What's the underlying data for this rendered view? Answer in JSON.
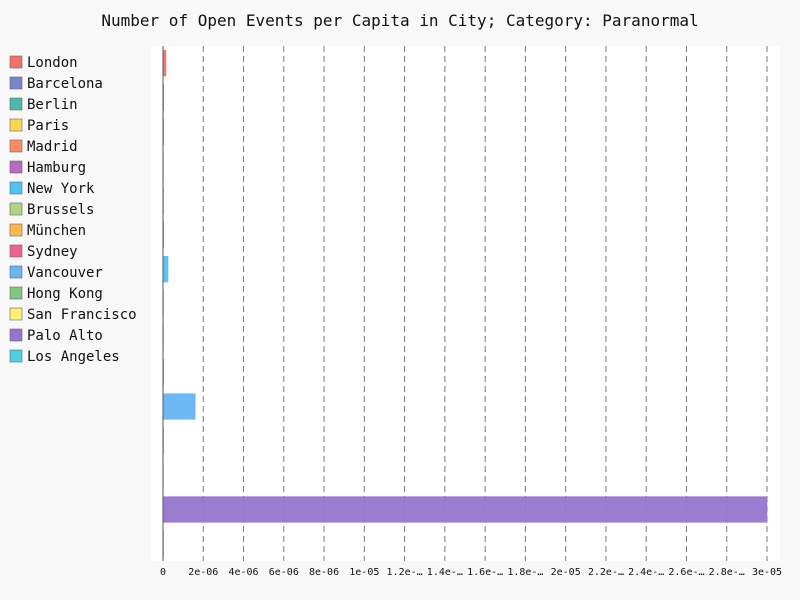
{
  "chart_data": {
    "type": "bar",
    "orientation": "horizontal",
    "title": "Number of Open Events per Capita in City; Category: Paranormal",
    "xlabel": "",
    "ylabel": "",
    "xlim": [
      0,
      3e-05
    ],
    "grid": "vertical-dashed",
    "legend_position": "left",
    "x_tick_labels": [
      "0",
      "2e-06",
      "4e-06",
      "6e-06",
      "8e-06",
      "1e-05",
      "1.2e-…",
      "1.4e-…",
      "1.6e-…",
      "1.8e-…",
      "2e-05",
      "2.2e-…",
      "2.4e-…",
      "2.6e-…",
      "2.8e-…",
      "3e-05"
    ],
    "x_tick_values": [
      0,
      2e-06,
      4e-06,
      6e-06,
      8e-06,
      1e-05,
      1.2e-05,
      1.4e-05,
      1.6e-05,
      1.8e-05,
      2e-05,
      2.2e-05,
      2.4e-05,
      2.6e-05,
      2.8e-05,
      3e-05
    ],
    "series": [
      {
        "name": "London",
        "value": 1.5e-07,
        "color": "#f0736a"
      },
      {
        "name": "Barcelona",
        "value": 0.0,
        "color": "#7986cb"
      },
      {
        "name": "Berlin",
        "value": 0.0,
        "color": "#4db6ac"
      },
      {
        "name": "Paris",
        "value": 0.0,
        "color": "#ffd54f"
      },
      {
        "name": "Madrid",
        "value": 0.0,
        "color": "#ff8a65"
      },
      {
        "name": "Hamburg",
        "value": 0.0,
        "color": "#ba68c8"
      },
      {
        "name": "New York",
        "value": 2.5e-07,
        "color": "#4fc3f7"
      },
      {
        "name": "Brussels",
        "value": 0.0,
        "color": "#aed581"
      },
      {
        "name": "München",
        "value": 0.0,
        "color": "#ffb74d"
      },
      {
        "name": "Sydney",
        "value": 0.0,
        "color": "#f06292"
      },
      {
        "name": "Vancouver",
        "value": 1.6e-06,
        "color": "#64b5f6"
      },
      {
        "name": "Hong Kong",
        "value": 0.0,
        "color": "#81c784"
      },
      {
        "name": "San Francisco",
        "value": 0.0,
        "color": "#fff176"
      },
      {
        "name": "Palo Alto",
        "value": 3e-05,
        "color": "#9575cd"
      },
      {
        "name": "Los Angeles",
        "value": 0.0,
        "color": "#4dd0e1"
      }
    ]
  }
}
